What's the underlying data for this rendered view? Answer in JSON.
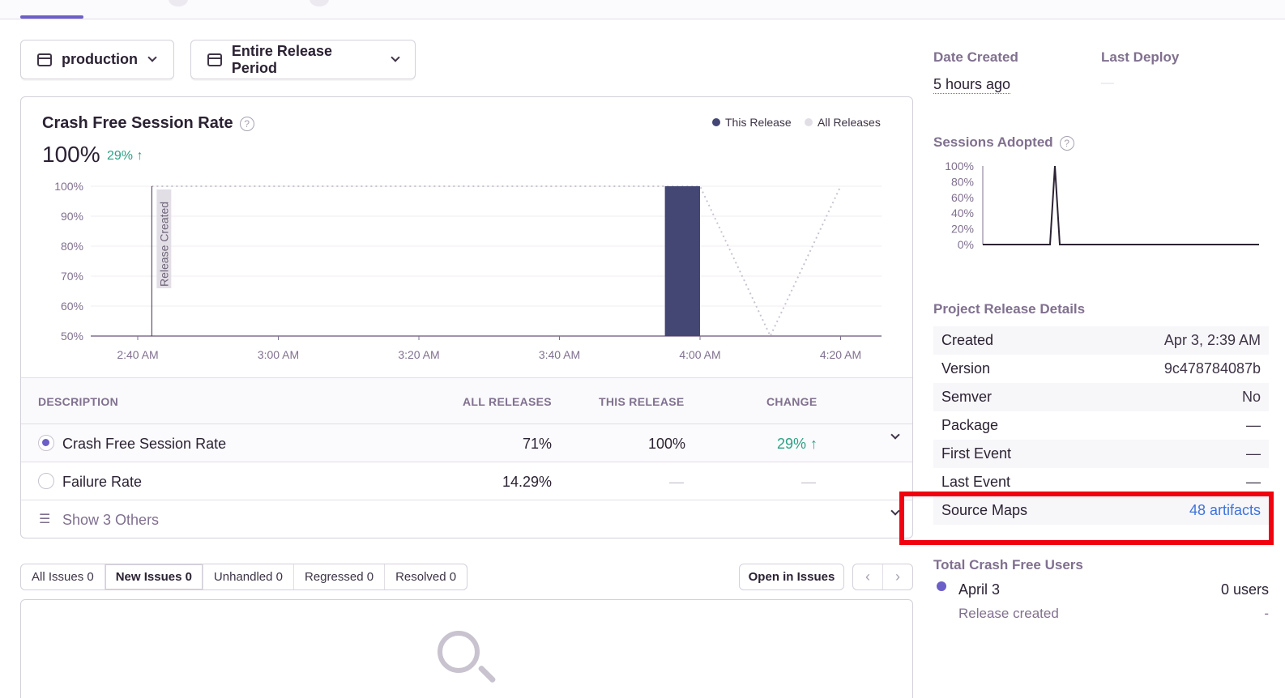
{
  "controls": {
    "environment": "production",
    "period": "Entire Release Period"
  },
  "chart_panel": {
    "title": "Crash Free Session Rate",
    "value": "100%",
    "change": "29%",
    "legend": {
      "this_release": "This Release",
      "all_releases": "All Releases"
    },
    "release_marker": "Release Created"
  },
  "chart_data": {
    "type": "bar",
    "title": "Crash Free Session Rate",
    "y_ticks": [
      "100%",
      "90%",
      "80%",
      "70%",
      "60%",
      "50%"
    ],
    "x_ticks": [
      "2:40 AM",
      "3:00 AM",
      "3:20 AM",
      "3:40 AM",
      "4:00 AM",
      "4:20 AM"
    ],
    "ylim": [
      50,
      100
    ],
    "series": [
      {
        "name": "This Release",
        "color": "#444674",
        "bars": [
          {
            "from": "3:55 AM",
            "to": "4:00 AM",
            "value": 100
          }
        ]
      },
      {
        "name": "All Releases",
        "color": "#c8c3cf",
        "style": "dotted",
        "points": [
          [
            "2:42 AM",
            100
          ],
          [
            "3:55 AM",
            100
          ],
          [
            "4:00 AM",
            100
          ],
          [
            "4:10 AM",
            50
          ],
          [
            "4:20 AM",
            100
          ]
        ]
      }
    ],
    "annotation": {
      "label": "Release Created",
      "x": "2:42 AM"
    },
    "legend_position": "top-right"
  },
  "table": {
    "headers": {
      "description": "DESCRIPTION",
      "all": "ALL RELEASES",
      "this": "THIS RELEASE",
      "change": "CHANGE"
    },
    "rows": [
      {
        "label": "Crash Free Session Rate",
        "all": "71%",
        "this": "100%",
        "change": "29% ↑",
        "selected": true
      },
      {
        "label": "Failure Rate",
        "all": "14.29%",
        "this": "—",
        "change": "—",
        "selected": false
      }
    ],
    "show_others": "Show 3 Others"
  },
  "issues": {
    "tabs": [
      "All Issues 0",
      "New Issues 0",
      "Unhandled 0",
      "Regressed 0",
      "Resolved 0"
    ],
    "selected_tab": "New Issues 0",
    "open_button": "Open in Issues",
    "prev": "‹",
    "next": "›"
  },
  "sidebar": {
    "date_created_label": "Date Created",
    "date_created_value": "5 hours ago",
    "last_deploy_label": "Last Deploy",
    "last_deploy_value": "—",
    "sessions_label": "Sessions Adopted",
    "sessions_chart": {
      "y_ticks": [
        "100%",
        "80%",
        "60%",
        "40%",
        "20%",
        "0%"
      ],
      "points": [
        0,
        0,
        0,
        0,
        0,
        100,
        0,
        0,
        0,
        0,
        0,
        0,
        0,
        0,
        0,
        0,
        0,
        0,
        0,
        0
      ]
    },
    "details_label": "Project Release Details",
    "details": [
      {
        "key": "Created",
        "value": "Apr 3, 2:39 AM"
      },
      {
        "key": "Version",
        "value": "9c478784087b"
      },
      {
        "key": "Semver",
        "value": "No"
      },
      {
        "key": "Package",
        "value": "—"
      },
      {
        "key": "First Event",
        "value": "—"
      },
      {
        "key": "Last Event",
        "value": "—"
      },
      {
        "key": "Source Maps",
        "value": "48 artifacts"
      }
    ],
    "crash_free_users_label": "Total Crash Free Users",
    "crash_free_users": {
      "date": "April 3",
      "users": "0 users",
      "note": "Release created",
      "note_value": "-"
    },
    "accent_color": "#6c5fc7"
  }
}
